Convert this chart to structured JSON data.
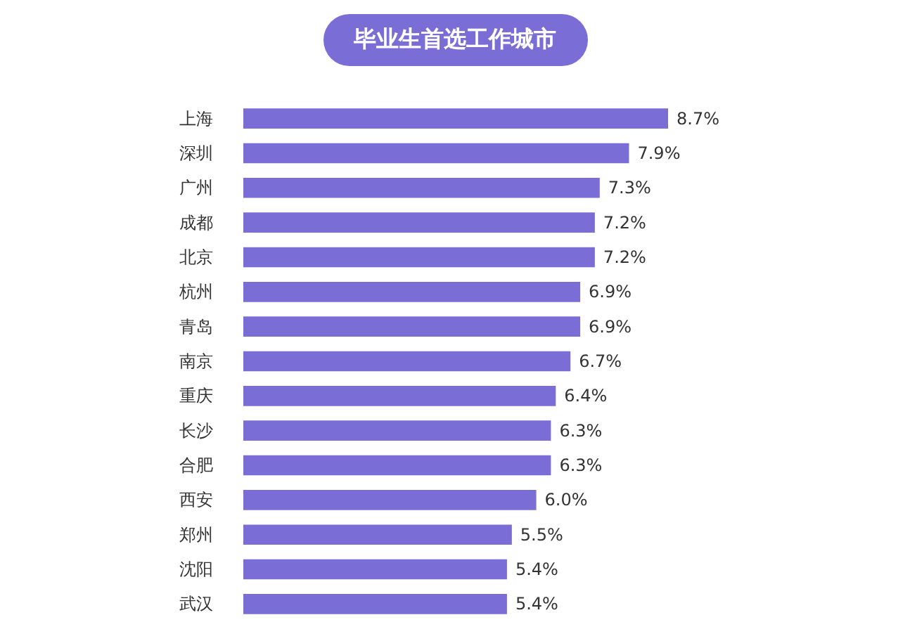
{
  "chart_data": {
    "type": "bar",
    "orientation": "horizontal",
    "title": "毕业生首选工作城市",
    "categories": [
      "上海",
      "深圳",
      "广州",
      "成都",
      "北京",
      "杭州",
      "青岛",
      "南京",
      "重庆",
      "长沙",
      "合肥",
      "西安",
      "郑州",
      "沈阳",
      "武汉"
    ],
    "values": [
      8.7,
      7.9,
      7.3,
      7.2,
      7.2,
      6.9,
      6.9,
      6.7,
      6.4,
      6.3,
      6.3,
      6.0,
      5.5,
      5.4,
      5.4
    ],
    "value_labels": [
      "8.7%",
      "7.9%",
      "7.3%",
      "7.2%",
      "7.2%",
      "6.9%",
      "6.9%",
      "6.7%",
      "6.4%",
      "6.3%",
      "6.3%",
      "6.0%",
      "5.5%",
      "5.4%",
      "5.4%"
    ],
    "color": "#7a6dd5"
  }
}
